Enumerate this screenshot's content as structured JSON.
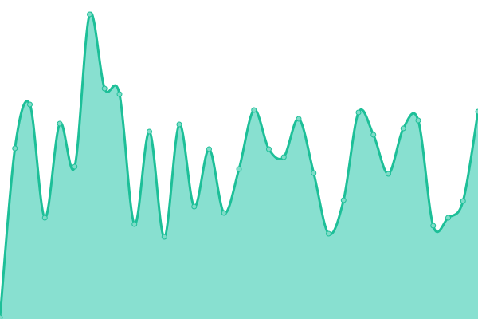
{
  "chart_data": {
    "type": "area",
    "title": "",
    "xlabel": "",
    "ylabel": "",
    "x": [
      0,
      1,
      2,
      3,
      4,
      5,
      6,
      7,
      8,
      9,
      10,
      11,
      12,
      13,
      14,
      15,
      16,
      17,
      18,
      19,
      20,
      21,
      22,
      23,
      24,
      25,
      26,
      27,
      28,
      29,
      30,
      31,
      32
    ],
    "values": [
      2,
      214,
      269,
      127,
      245,
      191,
      382,
      289,
      282,
      119,
      235,
      103,
      244,
      141,
      213,
      133,
      188,
      262,
      213,
      203,
      251,
      183,
      107,
      149,
      259,
      231,
      182,
      239,
      249,
      117,
      127,
      148,
      260
    ],
    "ylim": [
      0,
      400
    ],
    "grid": false,
    "axes_visible": false,
    "smooth": true,
    "markers": true,
    "colors": {
      "line": "#1dbf98",
      "fill": "#88e0d0",
      "marker_fill": "#7fdcc8",
      "marker_stroke": "#1dbf98"
    }
  }
}
